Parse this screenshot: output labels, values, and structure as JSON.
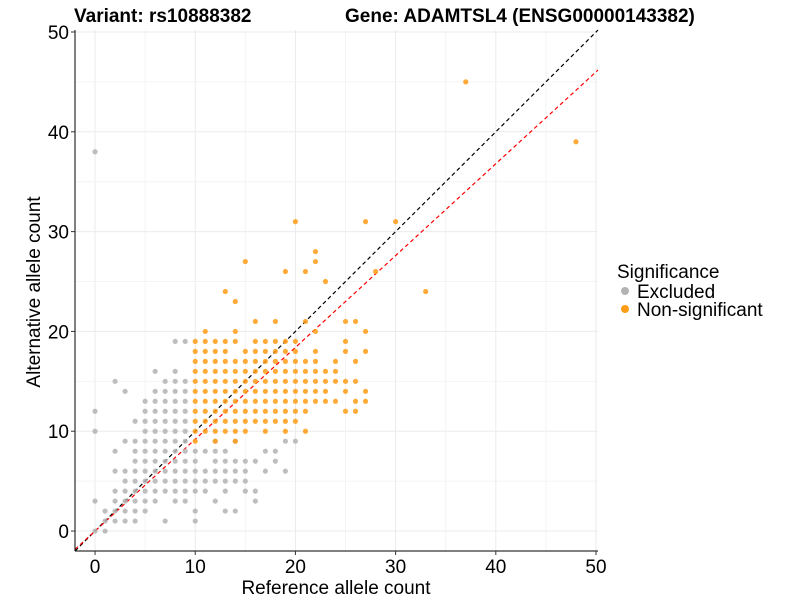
{
  "title_left": "Variant: rs10888382",
  "title_right": "Gene: ADAMTSL4 (ENSG00000143382)",
  "chart_data": {
    "type": "scatter",
    "xlabel": "Reference allele count",
    "ylabel": "Alternative allele count",
    "xlim": [
      -2,
      50.2
    ],
    "ylim": [
      -2,
      50.2
    ],
    "xticks": [
      0,
      10,
      20,
      30,
      40,
      50
    ],
    "yticks": [
      0,
      10,
      20,
      30,
      40,
      50
    ],
    "grid": true,
    "legend": {
      "title": "Significance",
      "position": "right",
      "entries": [
        {
          "label": "Excluded",
          "color": "#b3b3b3"
        },
        {
          "label": "Non-significant",
          "color": "#ff9c17"
        }
      ]
    },
    "reference_lines": [
      {
        "slope": 1.0,
        "intercept": 0,
        "color": "#000000",
        "style": "dashed"
      },
      {
        "slope": 0.92,
        "intercept": 0,
        "color": "#ff0000",
        "style": "dashed"
      }
    ],
    "series": [
      {
        "name": "Excluded",
        "color": "#b3b3b3",
        "points": [
          [
            0,
            38
          ],
          [
            0,
            12
          ],
          [
            0,
            10
          ],
          [
            0,
            3
          ],
          [
            0,
            0
          ],
          [
            1,
            2
          ],
          [
            1,
            1
          ],
          [
            1,
            0
          ],
          [
            2,
            15
          ],
          [
            2,
            8
          ],
          [
            2,
            6
          ],
          [
            2,
            4
          ],
          [
            2,
            3
          ],
          [
            2,
            2
          ],
          [
            2,
            1
          ],
          [
            3,
            14
          ],
          [
            3,
            9
          ],
          [
            3,
            6
          ],
          [
            3,
            5
          ],
          [
            3,
            4
          ],
          [
            3,
            3
          ],
          [
            3,
            2
          ],
          [
            3,
            1
          ],
          [
            4,
            11
          ],
          [
            4,
            9
          ],
          [
            4,
            8
          ],
          [
            4,
            7
          ],
          [
            4,
            6
          ],
          [
            4,
            5
          ],
          [
            4,
            4
          ],
          [
            4,
            3
          ],
          [
            4,
            2
          ],
          [
            4,
            1
          ],
          [
            5,
            13
          ],
          [
            5,
            12
          ],
          [
            5,
            11
          ],
          [
            5,
            10
          ],
          [
            5,
            9
          ],
          [
            5,
            8
          ],
          [
            5,
            7
          ],
          [
            5,
            6
          ],
          [
            5,
            5
          ],
          [
            5,
            4
          ],
          [
            5,
            3
          ],
          [
            5,
            2
          ],
          [
            6,
            16
          ],
          [
            6,
            14
          ],
          [
            6,
            13
          ],
          [
            6,
            12
          ],
          [
            6,
            11
          ],
          [
            6,
            10
          ],
          [
            6,
            9
          ],
          [
            6,
            8
          ],
          [
            6,
            7
          ],
          [
            6,
            6
          ],
          [
            6,
            5
          ],
          [
            6,
            4
          ],
          [
            6,
            3
          ],
          [
            7,
            15
          ],
          [
            7,
            14
          ],
          [
            7,
            13
          ],
          [
            7,
            12
          ],
          [
            7,
            11
          ],
          [
            7,
            10
          ],
          [
            7,
            9
          ],
          [
            7,
            8
          ],
          [
            7,
            7
          ],
          [
            7,
            6
          ],
          [
            7,
            5
          ],
          [
            7,
            4
          ],
          [
            7,
            1
          ],
          [
            8,
            19
          ],
          [
            8,
            16
          ],
          [
            8,
            15
          ],
          [
            8,
            14
          ],
          [
            8,
            13
          ],
          [
            8,
            12
          ],
          [
            8,
            11
          ],
          [
            8,
            10
          ],
          [
            8,
            9
          ],
          [
            8,
            8
          ],
          [
            8,
            7
          ],
          [
            8,
            6
          ],
          [
            8,
            5
          ],
          [
            8,
            4
          ],
          [
            8,
            3
          ],
          [
            9,
            19
          ],
          [
            9,
            15
          ],
          [
            9,
            14
          ],
          [
            9,
            13
          ],
          [
            9,
            12
          ],
          [
            9,
            11
          ],
          [
            9,
            10
          ],
          [
            9,
            9
          ],
          [
            9,
            8
          ],
          [
            9,
            7
          ],
          [
            9,
            6
          ],
          [
            9,
            5
          ],
          [
            9,
            4
          ],
          [
            9,
            3
          ],
          [
            10,
            8
          ],
          [
            10,
            7
          ],
          [
            10,
            6
          ],
          [
            10,
            5
          ],
          [
            10,
            4
          ],
          [
            10,
            2
          ],
          [
            10,
            1
          ],
          [
            11,
            8
          ],
          [
            11,
            6
          ],
          [
            11,
            5
          ],
          [
            11,
            4
          ],
          [
            12,
            9
          ],
          [
            12,
            8
          ],
          [
            12,
            7
          ],
          [
            12,
            6
          ],
          [
            12,
            5
          ],
          [
            12,
            3
          ],
          [
            13,
            8
          ],
          [
            13,
            7
          ],
          [
            13,
            6
          ],
          [
            13,
            5
          ],
          [
            13,
            4
          ],
          [
            13,
            2
          ],
          [
            14,
            9
          ],
          [
            14,
            7
          ],
          [
            14,
            6
          ],
          [
            14,
            5
          ],
          [
            14,
            2
          ],
          [
            15,
            7
          ],
          [
            15,
            6
          ],
          [
            15,
            5
          ],
          [
            15,
            4
          ],
          [
            16,
            7
          ],
          [
            16,
            4
          ],
          [
            16,
            3
          ],
          [
            17,
            8
          ],
          [
            17,
            6
          ],
          [
            18,
            8
          ],
          [
            18,
            7
          ],
          [
            19,
            9
          ],
          [
            19,
            6
          ],
          [
            20,
            9
          ]
        ]
      },
      {
        "name": "Non-significant",
        "color": "#ff9c17",
        "points": [
          [
            37,
            45
          ],
          [
            48,
            39
          ],
          [
            27,
            31
          ],
          [
            30,
            31
          ],
          [
            20,
            31
          ],
          [
            22,
            28
          ],
          [
            22,
            27
          ],
          [
            21,
            26
          ],
          [
            15,
            27
          ],
          [
            19,
            26
          ],
          [
            28,
            26
          ],
          [
            33,
            24
          ],
          [
            23,
            25
          ],
          [
            13,
            24
          ],
          [
            14,
            23
          ],
          [
            16,
            21
          ],
          [
            18,
            21
          ],
          [
            21,
            21
          ],
          [
            25,
            21
          ],
          [
            26,
            21
          ],
          [
            22,
            20
          ],
          [
            11,
            20
          ],
          [
            14,
            20
          ],
          [
            27,
            20
          ],
          [
            13,
            19
          ],
          [
            16,
            19
          ],
          [
            18,
            19
          ],
          [
            10,
            19
          ],
          [
            11,
            19
          ],
          [
            12,
            19
          ],
          [
            14,
            19
          ],
          [
            17,
            19
          ],
          [
            19,
            19
          ],
          [
            20,
            19
          ],
          [
            25,
            19
          ],
          [
            10,
            18
          ],
          [
            11,
            18
          ],
          [
            12,
            18
          ],
          [
            13,
            18
          ],
          [
            15,
            18
          ],
          [
            16,
            18
          ],
          [
            17,
            18
          ],
          [
            18,
            18
          ],
          [
            19,
            18
          ],
          [
            20,
            18
          ],
          [
            22,
            18
          ],
          [
            25,
            18
          ],
          [
            27,
            18
          ],
          [
            10,
            17
          ],
          [
            11,
            17
          ],
          [
            12,
            17
          ],
          [
            13,
            17
          ],
          [
            14,
            17
          ],
          [
            15,
            17
          ],
          [
            16,
            17
          ],
          [
            17,
            17
          ],
          [
            18,
            17
          ],
          [
            19,
            17
          ],
          [
            20,
            17
          ],
          [
            21,
            17
          ],
          [
            22,
            17
          ],
          [
            24,
            17
          ],
          [
            26,
            17
          ],
          [
            10,
            16
          ],
          [
            11,
            16
          ],
          [
            12,
            16
          ],
          [
            13,
            16
          ],
          [
            14,
            16
          ],
          [
            15,
            16
          ],
          [
            16,
            16
          ],
          [
            17,
            16
          ],
          [
            18,
            16
          ],
          [
            19,
            16
          ],
          [
            20,
            16
          ],
          [
            21,
            16
          ],
          [
            22,
            16
          ],
          [
            23,
            16
          ],
          [
            24,
            16
          ],
          [
            10,
            15
          ],
          [
            11,
            15
          ],
          [
            12,
            15
          ],
          [
            13,
            15
          ],
          [
            14,
            15
          ],
          [
            15,
            15
          ],
          [
            16,
            15
          ],
          [
            17,
            15
          ],
          [
            18,
            15
          ],
          [
            19,
            15
          ],
          [
            20,
            15
          ],
          [
            21,
            15
          ],
          [
            22,
            15
          ],
          [
            23,
            15
          ],
          [
            24,
            15
          ],
          [
            25,
            15
          ],
          [
            26,
            15
          ],
          [
            10,
            14
          ],
          [
            11,
            14
          ],
          [
            12,
            14
          ],
          [
            13,
            14
          ],
          [
            14,
            14
          ],
          [
            15,
            14
          ],
          [
            16,
            14
          ],
          [
            17,
            14
          ],
          [
            18,
            14
          ],
          [
            19,
            14
          ],
          [
            20,
            14
          ],
          [
            21,
            14
          ],
          [
            22,
            14
          ],
          [
            23,
            14
          ],
          [
            25,
            14
          ],
          [
            27,
            14
          ],
          [
            10,
            13
          ],
          [
            11,
            13
          ],
          [
            12,
            13
          ],
          [
            13,
            13
          ],
          [
            14,
            13
          ],
          [
            15,
            13
          ],
          [
            16,
            13
          ],
          [
            17,
            13
          ],
          [
            18,
            13
          ],
          [
            19,
            13
          ],
          [
            20,
            13
          ],
          [
            21,
            13
          ],
          [
            22,
            13
          ],
          [
            23,
            13
          ],
          [
            24,
            13
          ],
          [
            26,
            13
          ],
          [
            27,
            13
          ],
          [
            10,
            12
          ],
          [
            11,
            12
          ],
          [
            12,
            12
          ],
          [
            13,
            12
          ],
          [
            14,
            12
          ],
          [
            15,
            12
          ],
          [
            16,
            12
          ],
          [
            17,
            12
          ],
          [
            18,
            12
          ],
          [
            19,
            12
          ],
          [
            20,
            12
          ],
          [
            21,
            12
          ],
          [
            25,
            12
          ],
          [
            26,
            12
          ],
          [
            10,
            11
          ],
          [
            11,
            11
          ],
          [
            12,
            11
          ],
          [
            13,
            11
          ],
          [
            14,
            11
          ],
          [
            15,
            11
          ],
          [
            16,
            11
          ],
          [
            17,
            11
          ],
          [
            18,
            11
          ],
          [
            19,
            11
          ],
          [
            20,
            11
          ],
          [
            10,
            10
          ],
          [
            11,
            10
          ],
          [
            12,
            10
          ],
          [
            13,
            10
          ],
          [
            14,
            10
          ],
          [
            15,
            10
          ],
          [
            17,
            10
          ],
          [
            19,
            10
          ],
          [
            21,
            10
          ],
          [
            10,
            9
          ],
          [
            12,
            9
          ],
          [
            14,
            9
          ]
        ]
      }
    ]
  }
}
